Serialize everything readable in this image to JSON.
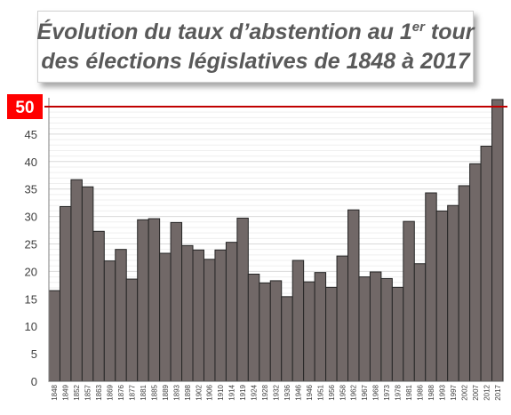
{
  "chart_data": {
    "type": "bar",
    "title_parts": {
      "line1_before_sup": "Évolution du taux d’abstention au 1",
      "line1_sup": "er",
      "line1_after_sup": " tour",
      "line2": "des élections législatives de 1848 à 2017"
    },
    "xlabel": "",
    "ylabel": "",
    "ylim": [
      0,
      50
    ],
    "yticks": [
      "0",
      "5",
      "10",
      "15",
      "20",
      "25",
      "30",
      "35",
      "40",
      "45"
    ],
    "reference_line": {
      "value": 50,
      "label": "50",
      "color": "#c00000"
    },
    "grid": true,
    "bar_color": "#716867",
    "categories": [
      "1848",
      "1849",
      "1852",
      "1857",
      "1863",
      "1869",
      "1876",
      "1877",
      "1881",
      "1885",
      "1889",
      "1893",
      "1898",
      "1902",
      "1906",
      "1910",
      "1914",
      "1919",
      "1924",
      "1928",
      "1932",
      "1936",
      "1946",
      "1946",
      "1951",
      "1956",
      "1958",
      "1962",
      "1967",
      "1968",
      "1973",
      "1978",
      "1981",
      "1986",
      "1988",
      "1993",
      "1997",
      "2002",
      "2007",
      "2012",
      "2017"
    ],
    "values": [
      16.5,
      31.8,
      36.7,
      35.4,
      27.3,
      21.9,
      24.0,
      18.6,
      29.4,
      29.6,
      23.3,
      28.9,
      24.7,
      23.9,
      22.2,
      23.9,
      25.3,
      29.7,
      19.5,
      17.9,
      18.3,
      15.4,
      22.0,
      18.1,
      19.8,
      17.1,
      22.8,
      31.2,
      19.0,
      19.9,
      18.7,
      17.1,
      29.1,
      21.4,
      34.3,
      31.0,
      32.0,
      35.6,
      39.6,
      42.8,
      51.3
    ]
  }
}
